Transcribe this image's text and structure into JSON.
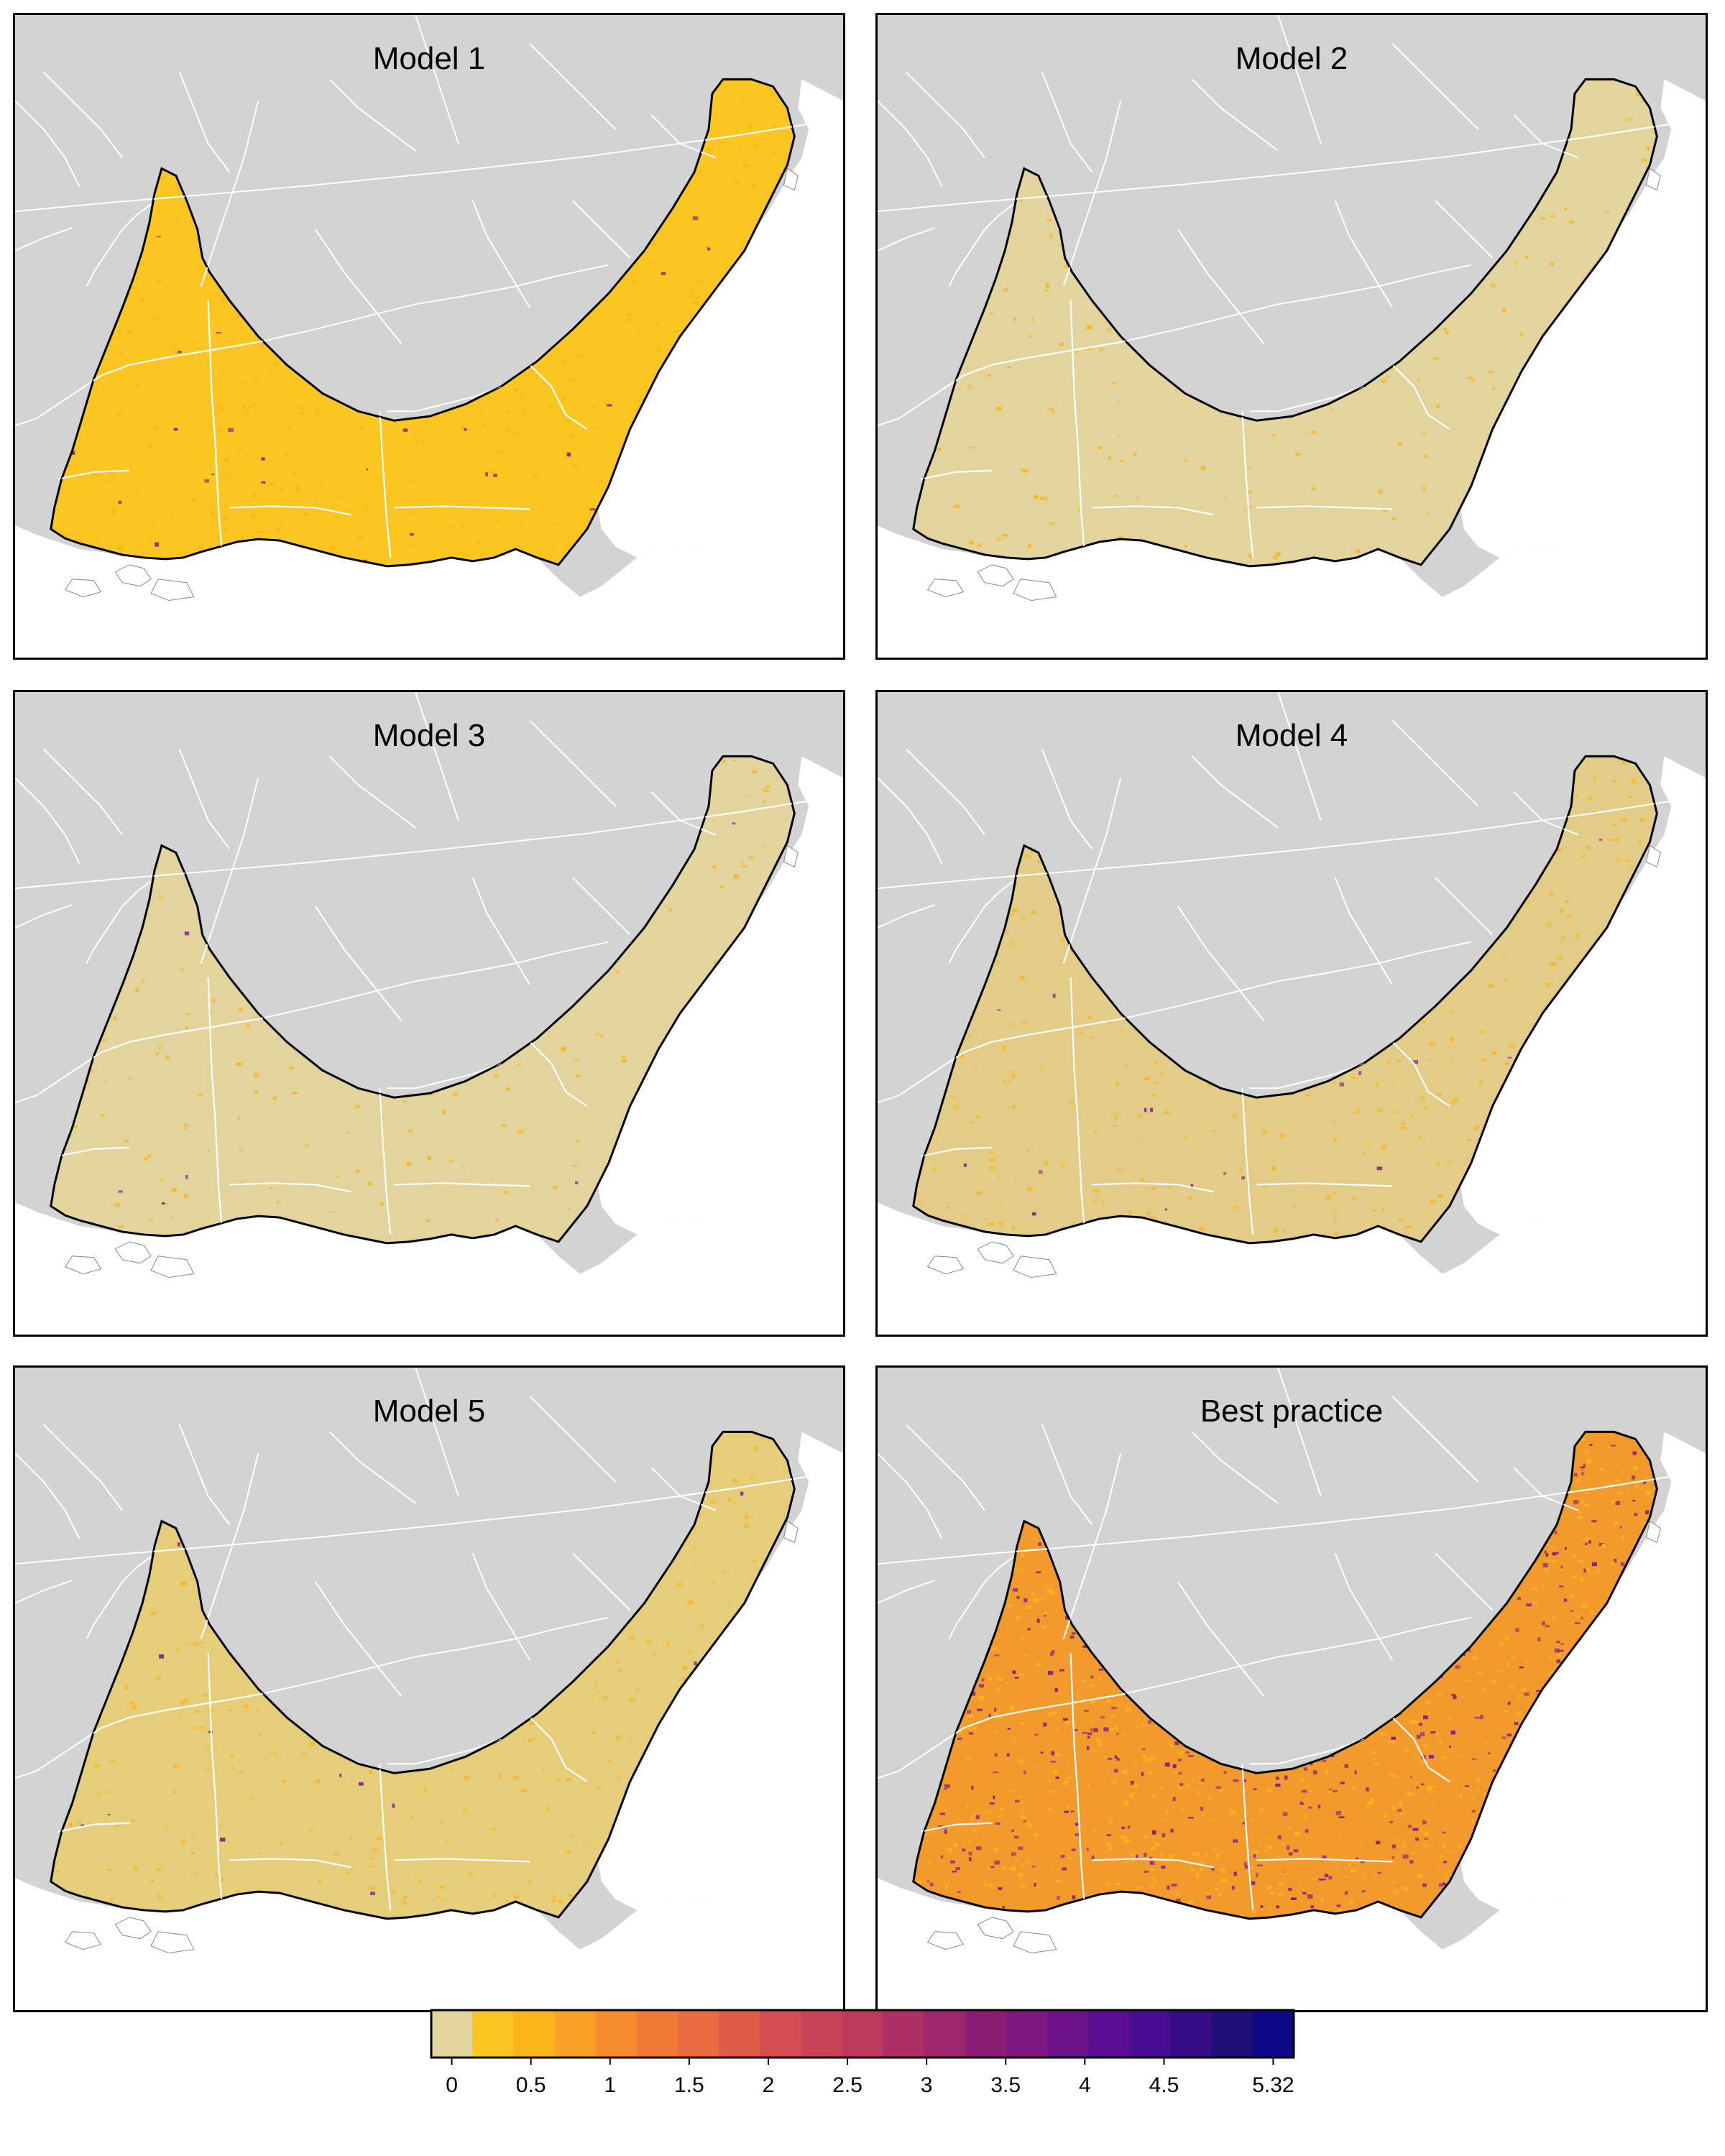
{
  "panels": [
    {
      "id": "p1",
      "title": "Model 1",
      "fill": "#fbc622",
      "level": 0.3
    },
    {
      "id": "p2",
      "title": "Model 2",
      "fill": "#e2d49c",
      "level": 0.0
    },
    {
      "id": "p3",
      "title": "Model 3",
      "fill": "#e2d49c",
      "level": 0.05
    },
    {
      "id": "p4",
      "title": "Model 4",
      "fill": "#e3cc88",
      "level": 0.2
    },
    {
      "id": "p5",
      "title": "Model 5",
      "fill": "#e6cd79",
      "level": 0.15
    },
    {
      "id": "p6",
      "title": "Best practice",
      "fill": "#f39a2c",
      "level": 1.2
    }
  ],
  "colors": {
    "land": "#d3d3d3",
    "water": "#ffffff",
    "state_lines": "#ffffff",
    "outline": "#000000",
    "speckle_low": "#fbb61a",
    "speckle_high": "#7e1d8c"
  },
  "legend": {
    "bins": [
      "#e2d49c",
      "#fcc622",
      "#fbb61a",
      "#f9a227",
      "#f68c2e",
      "#f17a37",
      "#ea6a41",
      "#e05c4a",
      "#d54f52",
      "#c94458",
      "#bc3a5e",
      "#ad2f66",
      "#9d266c",
      "#8c1d75",
      "#7e1880",
      "#6e128a",
      "#5b0e91",
      "#470c91",
      "#360c87",
      "#220c75",
      "#0d0887"
    ],
    "ticks": [
      {
        "value": 0,
        "label": "0"
      },
      {
        "value": 0.5,
        "label": "0.5"
      },
      {
        "value": 1,
        "label": "1"
      },
      {
        "value": 1.5,
        "label": "1.5"
      },
      {
        "value": 2,
        "label": "2"
      },
      {
        "value": 2.5,
        "label": "2.5"
      },
      {
        "value": 3,
        "label": "3"
      },
      {
        "value": 3.5,
        "label": "3.5"
      },
      {
        "value": 4,
        "label": "4"
      },
      {
        "value": 4.5,
        "label": "4.5"
      },
      {
        "value": 5.32,
        "label": "5.32"
      }
    ],
    "range": [
      0,
      5.32
    ]
  }
}
